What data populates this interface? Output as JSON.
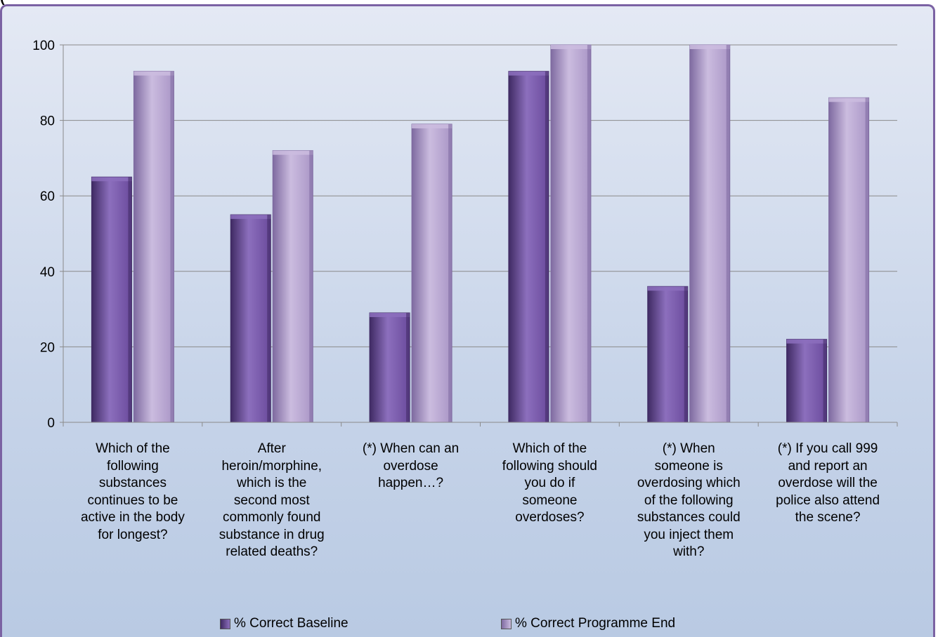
{
  "header": {
    "clipped_title": "("
  },
  "colors": {
    "baseline": "#6a4a9c",
    "baseline_light": "#8c6fbd",
    "baseline_dark": "#3f2a63",
    "programme_end": "#a995c6",
    "programme_end_light": "#cbbcdf",
    "programme_end_dark": "#7e6aa0",
    "gridline": "#8a8a8a",
    "frame": "#7b62a3"
  },
  "chart_data": {
    "type": "bar",
    "categories": [
      "Which of the following substances continues to be active in the body for longest?",
      "After heroin/morphine, which is the second most commonly found substance in drug related deaths?",
      "(*) When can an overdose happen…?",
      "Which of the following should you do if someone overdoses?",
      "(*) When someone is overdosing which of the following substances could you inject them with?",
      "(*) If you call 999 and report an overdose will the police also attend the scene?"
    ],
    "category_lines": [
      [
        "Which of the",
        "following",
        "substances",
        "continues to be",
        "active in the body",
        "for longest?"
      ],
      [
        "After",
        "heroin/morphine,",
        "which is the",
        "second most",
        "commonly found",
        "substance in drug",
        "related deaths?"
      ],
      [
        "(*) When can an",
        "overdose",
        "happen…?"
      ],
      [
        "Which of the",
        "following should",
        "you do if",
        "someone",
        "overdoses?"
      ],
      [
        "(*) When",
        "someone is",
        "overdosing which",
        "of the following",
        "substances could",
        "you inject them",
        "with?"
      ],
      [
        "(*) If you call 999",
        "and report an",
        "overdose will the",
        "police also attend",
        "the scene?"
      ]
    ],
    "series": [
      {
        "name": "% Correct Baseline",
        "values": [
          65,
          55,
          29,
          93,
          36,
          22
        ]
      },
      {
        "name": "% Correct Programme End",
        "values": [
          93,
          72,
          79,
          100,
          100,
          86
        ]
      }
    ],
    "ylim": [
      0,
      100
    ],
    "yticks": [
      0,
      20,
      40,
      60,
      80,
      100
    ],
    "grid": true,
    "legend_position": "bottom"
  }
}
